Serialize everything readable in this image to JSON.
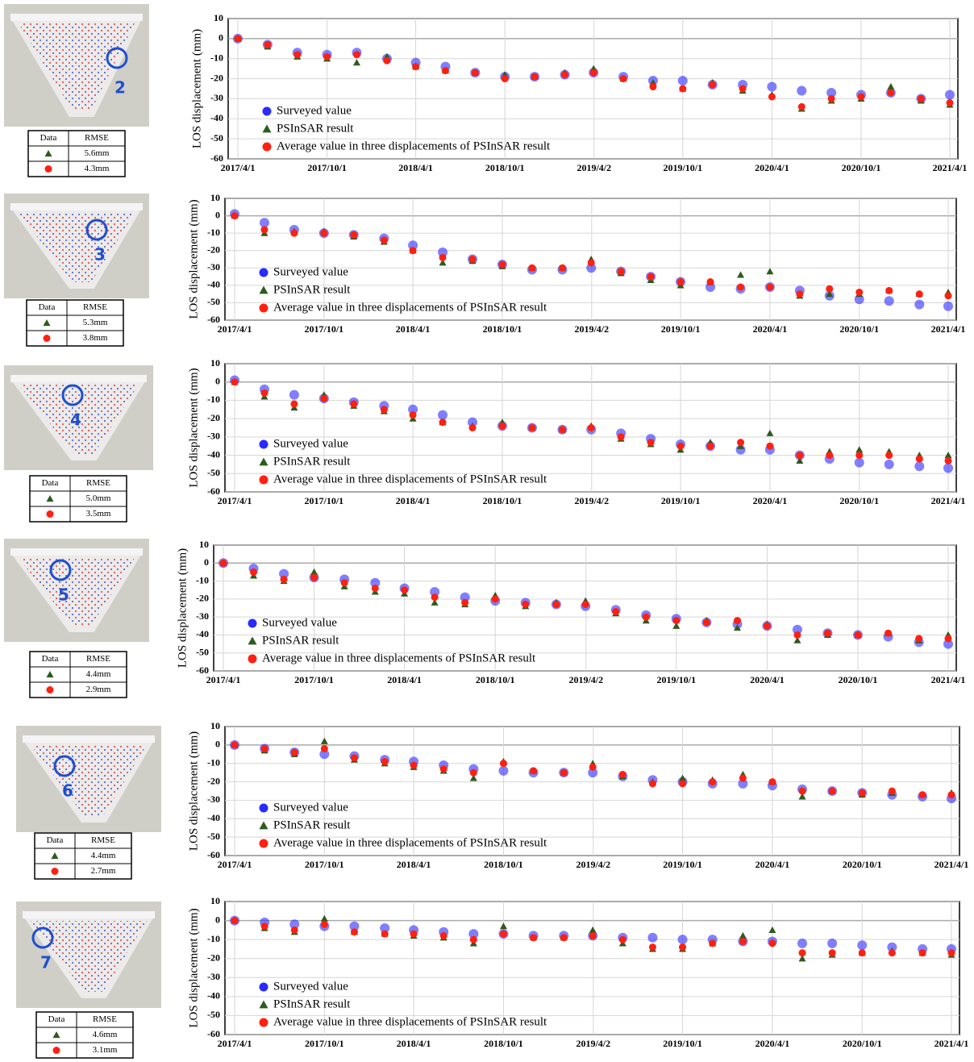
{
  "chart_data": [
    {
      "type": "scatter",
      "site": "2",
      "y_label": "LOS displacement (mm)",
      "rmse": {
        "header": [
          "Data",
          "RMSE"
        ],
        "rows": [
          "5.6mm",
          "4.3mm"
        ]
      },
      "legend": "lower left",
      "grid": true,
      "xlim": [
        "2017/4/1",
        "2021/4/1"
      ],
      "xticks": [
        "2017/4/1",
        "2017/10/1",
        "2018/4/1",
        "2018/10/1",
        "2019/4/2",
        "2019/10/1",
        "2020/4/1",
        "2020/10/1",
        "2021/4/1"
      ],
      "ylim": [
        -60,
        10
      ],
      "yticks": [
        10,
        0,
        -10,
        -20,
        -30,
        -40,
        -50,
        -60
      ],
      "x": [
        "2017/4/1",
        "2017/6/1",
        "2017/8/1",
        "2017/10/1",
        "2017/12/1",
        "2018/2/1",
        "2018/4/1",
        "2018/6/1",
        "2018/8/1",
        "2018/10/1",
        "2018/12/1",
        "2019/2/1",
        "2019/4/1",
        "2019/6/1",
        "2019/8/1",
        "2019/10/1",
        "2019/12/1",
        "2020/2/1",
        "2020/4/1",
        "2020/6/1",
        "2020/8/1",
        "2020/10/1",
        "2020/12/1",
        "2021/2/1",
        "2021/4/1"
      ],
      "series": [
        {
          "name": "Surveyed value",
          "color": "#2a2aff",
          "marker": "circle",
          "values": [
            0,
            -3,
            -7,
            -8,
            -7,
            -10,
            -12,
            -14,
            -17,
            -19,
            -19,
            -18,
            -17,
            -19,
            -21,
            -21,
            -23,
            -23,
            -24,
            -26,
            -27,
            -28,
            -27,
            -30,
            -28
          ]
        },
        {
          "name": "PSInSAR result",
          "color": "#2f5a1e",
          "marker": "triangle",
          "values": [
            0,
            -4,
            -9,
            -10,
            -12,
            -9,
            -14,
            -16,
            -17,
            -18,
            -19,
            -17,
            -15,
            -20,
            -22,
            -25,
            -22,
            -26,
            -28,
            -35,
            -31,
            -30,
            -24,
            -31,
            -33
          ]
        },
        {
          "name": "Average value in three displacements of PSInSAR result",
          "color": "#ff2010",
          "marker": "circle",
          "values": [
            0,
            -3,
            -8,
            -9,
            -8,
            -11,
            -14,
            -16,
            -17,
            -20,
            -19,
            -18,
            -17,
            -20,
            -24,
            -25,
            -23,
            -25,
            -29,
            -34,
            -30,
            -29,
            -27,
            -30,
            -32
          ]
        }
      ]
    },
    {
      "type": "scatter",
      "site": "3",
      "y_label": "LOS displacement (mm)",
      "rmse": {
        "header": [
          "Data",
          "RMSE"
        ],
        "rows": [
          "5.3mm",
          "3.8mm"
        ]
      },
      "legend": "lower left",
      "grid": true,
      "xlim": [
        "2017/4/1",
        "2021/4/1"
      ],
      "xticks": [
        "2017/4/1",
        "2017/10/1",
        "2018/4/1",
        "2018/10/1",
        "2019/4/2",
        "2019/10/1",
        "2020/4/1",
        "2020/10/1",
        "2021/4/1"
      ],
      "ylim": [
        -60,
        10
      ],
      "yticks": [
        10,
        0,
        -10,
        -20,
        -30,
        -40,
        -50,
        -60
      ],
      "x": [
        "2017/4/1",
        "2017/6/1",
        "2017/8/1",
        "2017/10/1",
        "2017/12/1",
        "2018/2/1",
        "2018/4/1",
        "2018/6/1",
        "2018/8/1",
        "2018/10/1",
        "2018/12/1",
        "2019/2/1",
        "2019/4/1",
        "2019/6/1",
        "2019/8/1",
        "2019/10/1",
        "2019/12/1",
        "2020/2/1",
        "2020/4/1",
        "2020/6/1",
        "2020/8/1",
        "2020/10/1",
        "2020/12/1",
        "2021/2/1",
        "2021/4/1"
      ],
      "series": [
        {
          "name": "Surveyed value",
          "color": "#2a2aff",
          "marker": "circle",
          "values": [
            1,
            -4,
            -8,
            -10,
            -11,
            -13,
            -17,
            -21,
            -25,
            -28,
            -31,
            -31,
            -30,
            -32,
            -35,
            -38,
            -41,
            -42,
            -41,
            -43,
            -46,
            -48,
            -49,
            -51,
            -52
          ]
        },
        {
          "name": "PSInSAR result",
          "color": "#2f5a1e",
          "marker": "triangle",
          "values": [
            0,
            -10,
            -9,
            -9,
            -12,
            -15,
            -20,
            -27,
            -26,
            -29,
            -30,
            -30,
            -25,
            -33,
            -37,
            -40,
            -38,
            -34,
            -32,
            -46,
            -45,
            -45,
            -43,
            -45,
            -44
          ]
        },
        {
          "name": "Average value in three displacements of PSInSAR result",
          "color": "#ff2010",
          "marker": "circle",
          "values": [
            0,
            -8,
            -10,
            -10,
            -11,
            -14,
            -20,
            -24,
            -25,
            -28,
            -30,
            -30,
            -27,
            -32,
            -35,
            -38,
            -38,
            -41,
            -41,
            -45,
            -42,
            -44,
            -43,
            -45,
            -46
          ]
        }
      ]
    },
    {
      "type": "scatter",
      "site": "4",
      "y_label": "LOS displacement (mm)",
      "rmse": {
        "header": [
          "Data",
          "RMSE"
        ],
        "rows": [
          "5.0mm",
          "3.5mm"
        ]
      },
      "legend": "lower left",
      "grid": true,
      "xlim": [
        "2017/4/1",
        "2021/4/1"
      ],
      "xticks": [
        "2017/4/1",
        "2017/10/1",
        "2018/4/1",
        "2018/10/1",
        "2019/4/2",
        "2019/10/1",
        "2020/4/1",
        "2020/10/1",
        "2021/4/1"
      ],
      "ylim": [
        -60,
        10
      ],
      "yticks": [
        10,
        0,
        -10,
        -20,
        -30,
        -40,
        -50,
        -60
      ],
      "x": [
        "2017/4/1",
        "2017/6/1",
        "2017/8/1",
        "2017/10/1",
        "2017/12/1",
        "2018/2/1",
        "2018/4/1",
        "2018/6/1",
        "2018/8/1",
        "2018/10/1",
        "2018/12/1",
        "2019/2/1",
        "2019/4/1",
        "2019/6/1",
        "2019/8/1",
        "2019/10/1",
        "2019/12/1",
        "2020/2/1",
        "2020/4/1",
        "2020/6/1",
        "2020/8/1",
        "2020/10/1",
        "2020/12/1",
        "2021/2/1",
        "2021/4/1"
      ],
      "series": [
        {
          "name": "Surveyed value",
          "color": "#2a2aff",
          "marker": "circle",
          "values": [
            1,
            -4,
            -7,
            -9,
            -11,
            -13,
            -15,
            -18,
            -22,
            -24,
            -25,
            -26,
            -26,
            -28,
            -31,
            -34,
            -35,
            -37,
            -37,
            -40,
            -42,
            -44,
            -45,
            -46,
            -47
          ]
        },
        {
          "name": "PSInSAR result",
          "color": "#2f5a1e",
          "marker": "triangle",
          "values": [
            0,
            -8,
            -14,
            -7,
            -13,
            -16,
            -20,
            -22,
            -24,
            -22,
            -25,
            -26,
            -24,
            -31,
            -34,
            -37,
            -33,
            -35,
            -28,
            -43,
            -38,
            -37,
            -38,
            -40,
            -40
          ]
        },
        {
          "name": "Average value in three displacements of PSInSAR result",
          "color": "#ff2010",
          "marker": "circle",
          "values": [
            0,
            -6,
            -12,
            -9,
            -12,
            -15,
            -18,
            -22,
            -25,
            -24,
            -25,
            -26,
            -25,
            -30,
            -33,
            -35,
            -35,
            -33,
            -35,
            -40,
            -40,
            -40,
            -40,
            -42,
            -43
          ]
        }
      ]
    },
    {
      "type": "scatter",
      "site": "5",
      "y_label": "LOS displacement (mm)",
      "rmse": {
        "header": [
          "Data",
          "RMSE"
        ],
        "rows": [
          "4.4mm",
          "2.9mm"
        ]
      },
      "legend": "lower left",
      "grid": true,
      "xlim": [
        "2017/4/1",
        "2021/4/1"
      ],
      "xticks": [
        "2017/4/1",
        "2017/10/1",
        "2018/4/1",
        "2018/10/1",
        "2019/4/2",
        "2019/10/1",
        "2020/4/1",
        "2020/10/1",
        "2021/4/1"
      ],
      "ylim": [
        -60,
        10
      ],
      "yticks": [
        10,
        0,
        -10,
        -20,
        -30,
        -40,
        -50,
        -60
      ],
      "x": [
        "2017/4/1",
        "2017/6/1",
        "2017/8/1",
        "2017/10/1",
        "2017/12/1",
        "2018/2/1",
        "2018/4/1",
        "2018/6/1",
        "2018/8/1",
        "2018/10/1",
        "2018/12/1",
        "2019/2/1",
        "2019/4/1",
        "2019/6/1",
        "2019/8/1",
        "2019/10/1",
        "2019/12/1",
        "2020/2/1",
        "2020/4/1",
        "2020/6/1",
        "2020/8/1",
        "2020/10/1",
        "2020/12/1",
        "2021/2/1",
        "2021/4/1"
      ],
      "series": [
        {
          "name": "Surveyed value",
          "color": "#2a2aff",
          "marker": "circle",
          "values": [
            0,
            -3,
            -6,
            -8,
            -9,
            -11,
            -14,
            -16,
            -19,
            -21,
            -22,
            -23,
            -24,
            -26,
            -29,
            -31,
            -33,
            -34,
            -35,
            -37,
            -39,
            -40,
            -41,
            -44,
            -45
          ]
        },
        {
          "name": "PSInSAR result",
          "color": "#2f5a1e",
          "marker": "triangle",
          "values": [
            0,
            -7,
            -10,
            -5,
            -13,
            -16,
            -17,
            -22,
            -23,
            -18,
            -24,
            -22,
            -21,
            -28,
            -32,
            -35,
            -32,
            -36,
            -34,
            -43,
            -40,
            -40,
            -39,
            -43,
            -40
          ]
        },
        {
          "name": "Average value in three displacements of PSInSAR result",
          "color": "#ff2010",
          "marker": "circle",
          "values": [
            0,
            -5,
            -9,
            -8,
            -11,
            -14,
            -15,
            -19,
            -22,
            -20,
            -23,
            -23,
            -23,
            -27,
            -30,
            -32,
            -33,
            -32,
            -35,
            -40,
            -39,
            -40,
            -39,
            -42,
            -42
          ]
        }
      ]
    },
    {
      "type": "scatter",
      "site": "6",
      "y_label": "LOS displacement (mm)",
      "rmse": {
        "header": [
          "Data",
          "RMSE"
        ],
        "rows": [
          "4.4mm",
          "2.7mm"
        ]
      },
      "legend": "lower left",
      "grid": true,
      "xlim": [
        "2017/4/1",
        "2021/4/1"
      ],
      "xticks": [
        "2017/4/1",
        "2017/10/1",
        "2018/4/1",
        "2018/10/1",
        "2019/4/2",
        "2019/10/1",
        "2020/4/1",
        "2020/10/1",
        "2021/4/1"
      ],
      "ylim": [
        -60,
        10
      ],
      "yticks": [
        10,
        0,
        -10,
        -20,
        -30,
        -40,
        -50,
        -60
      ],
      "x": [
        "2017/4/1",
        "2017/6/1",
        "2017/8/1",
        "2017/10/1",
        "2017/12/1",
        "2018/2/1",
        "2018/4/1",
        "2018/6/1",
        "2018/8/1",
        "2018/10/1",
        "2018/12/1",
        "2019/2/1",
        "2019/4/1",
        "2019/6/1",
        "2019/8/1",
        "2019/10/1",
        "2019/12/1",
        "2020/2/1",
        "2020/4/1",
        "2020/6/1",
        "2020/8/1",
        "2020/10/1",
        "2020/12/1",
        "2021/2/1",
        "2021/4/1"
      ],
      "series": [
        {
          "name": "Surveyed value",
          "color": "#2a2aff",
          "marker": "circle",
          "values": [
            0,
            -2,
            -4,
            -5,
            -6,
            -8,
            -9,
            -11,
            -13,
            -14,
            -15,
            -15,
            -15,
            -17,
            -19,
            -20,
            -21,
            -21,
            -22,
            -24,
            -25,
            -26,
            -27,
            -28,
            -29
          ]
        },
        {
          "name": "PSInSAR result",
          "color": "#2f5a1e",
          "marker": "triangle",
          "values": [
            0,
            -3,
            -5,
            2,
            -8,
            -10,
            -12,
            -14,
            -18,
            -9,
            -14,
            -15,
            -10,
            -17,
            -20,
            -18,
            -19,
            -16,
            -20,
            -28,
            -25,
            -27,
            -26,
            -27,
            -26
          ]
        },
        {
          "name": "Average value in three displacements of PSInSAR result",
          "color": "#ff2010",
          "marker": "circle",
          "values": [
            0,
            -2,
            -4,
            -2,
            -7,
            -9,
            -11,
            -13,
            -15,
            -10,
            -14,
            -15,
            -12,
            -16,
            -21,
            -21,
            -20,
            -18,
            -20,
            -25,
            -25,
            -26,
            -25,
            -27,
            -27
          ]
        }
      ]
    },
    {
      "type": "scatter",
      "site": "7",
      "y_label": "LOS displacement (mm)",
      "rmse": {
        "header": [
          "Data",
          "RMSE"
        ],
        "rows": [
          "4.6mm",
          "3.1mm"
        ]
      },
      "legend": "lower left",
      "grid": true,
      "xlim": [
        "2017/4/1",
        "2021/4/1"
      ],
      "xticks": [
        "2017/4/1",
        "2017/10/1",
        "2018/4/1",
        "2018/10/1",
        "2019/4/2",
        "2019/10/1",
        "2020/4/1",
        "2020/10/1",
        "2021/4/1"
      ],
      "ylim": [
        -60,
        10
      ],
      "yticks": [
        10,
        0,
        -10,
        -20,
        -30,
        -40,
        -50,
        -60
      ],
      "x": [
        "2017/4/1",
        "2017/6/1",
        "2017/8/1",
        "2017/10/1",
        "2017/12/1",
        "2018/2/1",
        "2018/4/1",
        "2018/6/1",
        "2018/8/1",
        "2018/10/1",
        "2018/12/1",
        "2019/2/1",
        "2019/4/1",
        "2019/6/1",
        "2019/8/1",
        "2019/10/1",
        "2019/12/1",
        "2020/2/1",
        "2020/4/1",
        "2020/6/1",
        "2020/8/1",
        "2020/10/1",
        "2020/12/1",
        "2021/2/1",
        "2021/4/1"
      ],
      "series": [
        {
          "name": "Surveyed value",
          "color": "#2a2aff",
          "marker": "circle",
          "values": [
            0,
            -1,
            -2,
            -3,
            -3,
            -4,
            -5,
            -6,
            -7,
            -7,
            -8,
            -8,
            -8,
            -9,
            -9,
            -10,
            -10,
            -11,
            -11,
            -12,
            -12,
            -13,
            -14,
            -15,
            -15
          ]
        },
        {
          "name": "PSInSAR result",
          "color": "#2f5a1e",
          "marker": "triangle",
          "values": [
            0,
            -4,
            -6,
            1,
            -6,
            -7,
            -8,
            -9,
            -12,
            -3,
            -9,
            -9,
            -5,
            -12,
            -15,
            -15,
            -12,
            -8,
            -5,
            -20,
            -18,
            -17,
            -16,
            -17,
            -18
          ]
        },
        {
          "name": "Average value in three displacements of PSInSAR result",
          "color": "#ff2010",
          "marker": "circle",
          "values": [
            0,
            -3,
            -5,
            -2,
            -6,
            -7,
            -7,
            -8,
            -10,
            -7,
            -9,
            -9,
            -8,
            -10,
            -14,
            -14,
            -12,
            -11,
            -12,
            -17,
            -17,
            -17,
            -17,
            -17,
            -17
          ]
        }
      ]
    }
  ]
}
